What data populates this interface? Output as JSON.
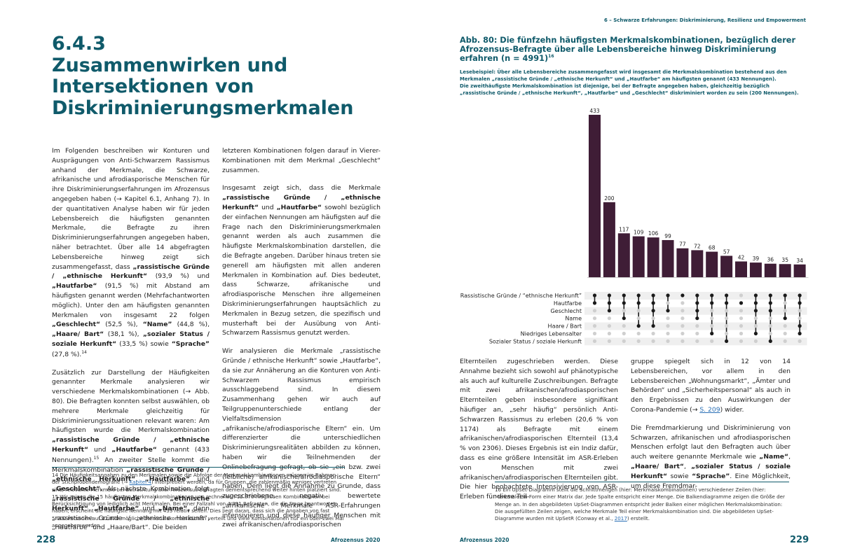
{
  "left": {
    "section_number": "6.4.3",
    "section_title_lines": [
      "Zusammenwirken und",
      "Intersektionen von",
      "Diskriminierungsmerkmalen"
    ],
    "col1_p1_a": "Im Folgenden beschreiben wir Konturen und Ausprägungen von Anti-Schwarzem Rassismus anhand der Merkmale, die Schwarze, afrikanische und afrodiasporische Menschen für ihre Diskriminierungserfahrungen im Afrozensus angegeben haben (→ Kapitel 6.1, Anhang 7). In der quantitativen Analyse haben wir für jeden Lebensbereich die häufigsten genannten Merkmale, die Befragte zu ihren Diskriminierungserfahrungen angegeben haben, näher betrachtet. Über alle 14 abgefragten Lebensbereiche hinweg zeigt sich zusammengefasst, dass ",
    "col1_p1_b1": "„rassistische Gründe / „ethnische Herkunft“",
    "col1_p1_c1": " (93,9 %) und ",
    "col1_p1_b2": "„Hautfarbe“",
    "col1_p1_c2": " (91,5 %) mit Abstand am häufigsten genannt werden (Mehrfachantworten möglich). Unter den am häufigsten genannten Merkmalen von insgesamt 22 folgen ",
    "col1_p1_b3": "„Geschlecht“",
    "col1_p1_c3": " (52,5 %), ",
    "col1_p1_b4": "“Name”",
    "col1_p1_c4": " (44,8 %), ",
    "col1_p1_b5": "„Haare/ Bart“",
    "col1_p1_c5": " (38,1 %), ",
    "col1_p1_b6": "„sozialer Status / soziale Herkunft“",
    "col1_p1_c6": " (33,5 %) sowie ",
    "col1_p1_b7": "“Sprache”",
    "col1_p1_c7": " (27,8 %).",
    "col1_p1_sup": "14",
    "col1_p2_a": "Zusätzlich zur Darstellung der Häufigkeiten genannter Merkmale analysieren wir verschiedene Merkmalskombinationen (→ Abb. 80). Die Befragten konnten selbst auswählen, ob mehrere Merkmale gleichzeitig für Diskriminierungssituationen relevant waren: Am häufigsten wurde die Merkmalskombination ",
    "col1_p2_b1": "„rassistische Gründe / „ethnische Herkunft“",
    "col1_p2_c1": " und ",
    "col1_p2_b2": "„Hautfarbe“",
    "col1_p2_c2": " genannt (433 Nennungen).",
    "col1_p2_sup": "15",
    "col1_p2_c3": " An zweiter Stelle kommt die Merkmalskombination ",
    "col1_p2_b3": "„rassistische Gründe / „ethnische Herkunft“",
    "col1_p2_c4": ", ",
    "col1_p2_b4": "„Hautfarbe“",
    "col1_p2_c5": " und ",
    "col1_p2_b5": "„Geschlecht“.",
    "col1_p2_c6": " Als nächste Kombination folgt ",
    "col1_p2_b6": "„rassistische Gründe / „ethnische Herkunft“",
    "col1_p2_c7": ", ",
    "col1_p2_b7": "„Hautfarbe“",
    "col1_p2_c8": " und ",
    "col1_p2_b8": "„Name“,",
    "col1_p2_c9": " dann „rassistische Gründe / „ethnische Herkunft“, „Hautfarbe“ und „Haare/Bart“. Die beiden",
    "col2_p1": "letzteren Kombinationen folgen darauf in Vierer-Kombinationen mit dem Merkmal „Geschlecht“ zusammen.",
    "col2_p2_a": "Insgesamt zeigt sich, dass die Merkmale ",
    "col2_p2_b1": "„rassistische Gründe / „ethnische Herkunft“",
    "col2_p2_c1": " und ",
    "col2_p2_b2": "„Hautfarbe“",
    "col2_p2_c2": " sowohl bezüglich der einfachen Nennungen am häufigsten auf die Frage nach den Diskriminierungsmerkmalen genannt werden als auch zusammen die häufigste Merkmalskombination darstellen, die die Befragte angeben. Darüber hinaus treten sie generell am häufigsten mit allen anderen Merkmalen in Kombination auf. Dies bedeutet, dass Schwarze, afrikanische und afrodiasporische Menschen ihre allgemeinen Diskriminierungserfahrungen hauptsächlich zu Merkmalen in Bezug setzen, die spezifisch und musterhaft bei der Ausübung von Anti-Schwarzem Rassismus genutzt werden.",
    "col2_p3": "Wir analysieren die Merkmale „rassistische Gründe / ethnische Herkunft“ sowie „Hautfarbe“, da sie zur Annäherung an die Konturen von Anti-Schwarzem Rassismus empirisch ausschlaggebend sind. In diesem Zusammenhang gehen wir auch auf Teilgruppenunterschiede entlang der Vielfaltsdimension „afrikanische/afrodiasporische Eltern“ ein. Um differenzierter die unterschiedlichen Diskriminierungsrealitäten abbilden zu können, haben wir die Teilnehmenden der Onlinebefragung gefragt, ob sie „ein bzw. zwei (leibliche) afrikanische/afrodiasporische Eltern“ haben. Dem liegt die Annahme zu Grunde, dass zugeschriebene, negativ bewertete „afrikanische“ Merkmale ASR-Erfahrungen intensivieren und diese häufiger Menschen mit zwei afrikanischen/afrodiasporischen",
    "fn14_a": "14 Die Häufigkeitsangaben zu den Merkmalen sowie die Abfolge der Merkmalskombinationen müssen im Rahmen der Stichprobendemografie (→ ",
    "fn14_link": "Kapitel 4",
    "fn14_b": ") interpretiert werden, da für Gruppen, die zahlenmäßig weniger vertreten sind, relevante Merkmale bei Betrachtung aller Afrozensus-Befragten dementsprechend weiter hinten platziert sind.",
    "fn15": "15 Wir zeigen die 15 häufigsten Merkmalskombinationen von rechnerisch 12.870 möglichen Kombinationen bei Berücksichtigung von lediglich acht Merkmalen. Bei einer Fallzahl von 4.991 Befragten, die die Frage beantwortet haben, erscheint die häufigste Nennung mit 433 relativ selten. Dies liegt daran, dass sich die Angaben von fast 5.000 Personen auf 12.870 mögliche Merkmalskombinationen verteilt und viele Kombinationen nur ein oder zwei Mal angegeben werden.",
    "page_number": "228",
    "footer_label": "Afrozensus 2020"
  },
  "right": {
    "running_header": "6 – Schwarze Erfahrungen: Diskriminierung, Resilienz und Empowerment",
    "fig_title": "Abb. 80: Die fünfzehn häufigsten Merkmalskombinationen, bezüglich derer Afrozensus-Befragte über alle Lebensbereiche hinweg Diskriminierung erfahren (n = 4991)",
    "fig_title_sup": "16",
    "fig_caption_1": "Lesebeispiel: Über alle Lebensbereiche zusammengefasst wird insgesamt die Merkmalskombination bestehend aus den Merkmalen „rassistische Gründe / „ethnische Herkunft“ und „Hautfarbe“ am häufigsten genannt (433 Nennungen).",
    "fig_caption_2": "Die zweithäufigste Merkmalskombination ist diejenige, bei der Befragte angegeben haben, gleichzeitig bezüglich „rassistische Gründe / „ethnische Herkunft“, „Hautfarbe“ und „Geschlecht“ diskriminiert worden zu sein (200 Nennungen).",
    "col1_p1": "Elternteilen zugeschrieben werden. Diese Annahme bezieht sich sowohl auf phänotypische als auch auf kulturelle Zuschreibungen. Befragte mit zwei afrikanischen/afrodiasporischen Elternteilen geben insbesondere signifikant häufiger an, „sehr häufig“ persönlich Anti-Schwarzen Rassismus zu erleben (20,6 % von 1174) als Befragte mit einem afrikanischen/afrodiasporischen Elternteil (13,4 % von 2306). Dieses Ergebnis ist ein Indiz dafür, dass es eine größere Intensität im ASR-Erleben von Menschen mit zwei afrikanischen/afrodiasporischen Elternteilen gibt. Die hier beobachtete Intensivierung von ASR-Erleben für diese Teil-",
    "col2_p1_a": "gruppe spiegelt sich in 12 von 14 Lebensbereichen, vor allem in den Lebensbereichen „Wohnungsmarkt“, „Ämter und Behörden“ und „Sicherheitspersonal“ als auch in den Ergebnissen zu den Auswirkungen der Corona-Pandemie (→ ",
    "col2_p1_link": "S. 209",
    "col2_p1_b": ") wider.",
    "col2_p2_a": "Die Fremdmarkierung und Diskriminierung von Schwarzen, afrikanischen und afrodiasporischen Menschen erfolgt laut den Befragten auch über auch weitere genannte Merkmale wie ",
    "col2_p2_b1": "„Name“",
    "col2_p2_c1": ", ",
    "col2_p2_b2": "„Haare/ Bart“",
    "col2_p2_c2": ", ",
    "col2_p2_b3": "„sozialer Status / soziale Herkunft“",
    "col2_p2_c3": " sowie ",
    "col2_p2_b4": "“Sprache”",
    "col2_p2_c4": ". Eine Möglichkeit, um diese Fremdmar-",
    "fn16_a": "16 Ein UpSet-Diagramm stellt die Schnittmengen (hier: Merkmalskombinationen) verschiedener Zeilen (hier: Merkmale) in Form einer Matrix dar. Jede Spalte entspricht einer Menge. Die Balkendiagramme zeigen die Größe der Menge an. In den abgebildeten UpSet-Diagrammen entspricht jeder Balken einer möglichen Merkmalskombination: Die ausgefüllten Zeilen zeigen, welche Merkmale Teil einer Merkmalskombination sind. Die abgebildeten UpSet-Diagramme wurden mit UpSetR (Conway et al., ",
    "fn16_link": "2017",
    "fn16_b": ") erstellt.",
    "page_number": "229",
    "footer_label": "Afrozensus 2020"
  },
  "colors": {
    "accent": "#0f5a6a",
    "bar": "#3f1d36",
    "dot_on": "#1a1a1a",
    "dot_off": "#cfcfcf",
    "row_shade": "#efefef"
  },
  "chart_data": {
    "type": "bar",
    "values": [
      433,
      200,
      117,
      109,
      106,
      99,
      77,
      72,
      68,
      57,
      42,
      39,
      36,
      35,
      34
    ],
    "set_labels": [
      "Rassistische Gründe / “ethnische Herkunft”",
      "Hautfarbe",
      "Geschlecht",
      "Name",
      "Haare / Bart",
      "Niedriges Lebensalter",
      "Sozialer Status / soziale Herkunft"
    ],
    "membership": [
      [
        0,
        1
      ],
      [
        0,
        1,
        2
      ],
      [
        0,
        1,
        3
      ],
      [
        0,
        1,
        4
      ],
      [
        0,
        1,
        2,
        4
      ],
      [
        0,
        2
      ],
      [
        0
      ],
      [
        0,
        1,
        2,
        3
      ],
      [
        0,
        1,
        5
      ],
      [
        0,
        1,
        6
      ],
      [
        1
      ],
      [
        0,
        1,
        2,
        5
      ],
      [
        0,
        1,
        2,
        6
      ],
      [
        0,
        3
      ],
      [
        0,
        1,
        4,
        5
      ]
    ]
  }
}
